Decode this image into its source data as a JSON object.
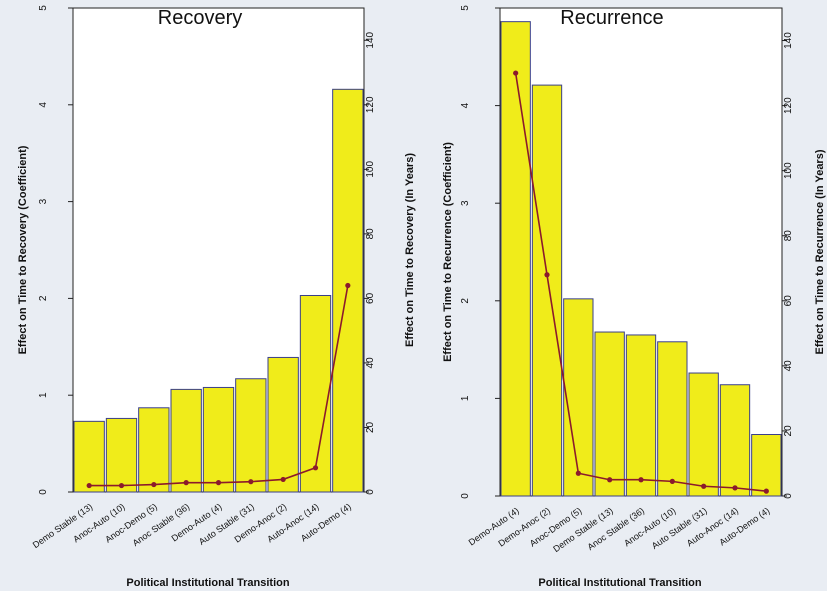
{
  "colors": {
    "bar": "#f0ec1a",
    "barStroke": "#3a3f8a",
    "line": "#8b1a2c",
    "background": "#e9edf3"
  },
  "chart_data": [
    {
      "type": "bar",
      "title": "Recovery",
      "ylabel": "Effect on Time to Recovery (Coefficient)",
      "y2label": "Effect on Time to Recovery (In Years)",
      "xlabel": "Political Institutional Transition",
      "categories": [
        "Demo Stable (13)",
        "Anoc-Auto (10)",
        "Anoc-Demo (5)",
        "Anoc Stable (36)",
        "Demo-Auto (4)",
        "Auto Stable (31)",
        "Demo-Anoc (2)",
        "Auto-Anoc (14)",
        "Auto-Demo (4)"
      ],
      "ylim": [
        0,
        5
      ],
      "yticks": [
        "0",
        "1",
        "2",
        "3",
        "4",
        "5"
      ],
      "y2lim": [
        0,
        150
      ],
      "y2ticks": [
        "0",
        "20",
        "40",
        "60",
        "80",
        "100",
        "120",
        "140"
      ],
      "series": [
        {
          "values": [
            0.73,
            0.76,
            0.87,
            1.06,
            1.08,
            1.17,
            1.39,
            2.03,
            4.16
          ]
        },
        {
          "axis": "right",
          "values": [
            2.0,
            2.0,
            2.3,
            2.9,
            2.9,
            3.2,
            3.9,
            7.5,
            64
          ]
        }
      ]
    },
    {
      "type": "bar",
      "title": "Recurrence",
      "ylabel": "Effect on Time to Recurrence (Coefficient)",
      "y2label": "Effect on Time to Recurrence (In Years)",
      "xlabel": "Political Institutional Transition",
      "categories": [
        "Demo-Auto (4)",
        "Demo-Anoc (2)",
        "Anoc-Demo (5)",
        "Demo Stable (13)",
        "Anoc Stable (36)",
        "Anoc-Auto (10)",
        "Auto Stable (31)",
        "Auto-Anoc (14)",
        "Auto-Demo (4)"
      ],
      "ylim": [
        0,
        5
      ],
      "yticks": [
        "0",
        "1",
        "2",
        "3",
        "4",
        "5"
      ],
      "y2lim": [
        0,
        150
      ],
      "y2ticks": [
        "0",
        "20",
        "40",
        "60",
        "80",
        "100",
        "120",
        "140"
      ],
      "series": [
        {
          "values": [
            4.86,
            4.21,
            2.02,
            1.68,
            1.65,
            1.58,
            1.26,
            1.14,
            0.63
          ]
        },
        {
          "axis": "right",
          "values": [
            130,
            68,
            7,
            5,
            5,
            4.5,
            3,
            2.5,
            1.5
          ]
        }
      ]
    }
  ]
}
